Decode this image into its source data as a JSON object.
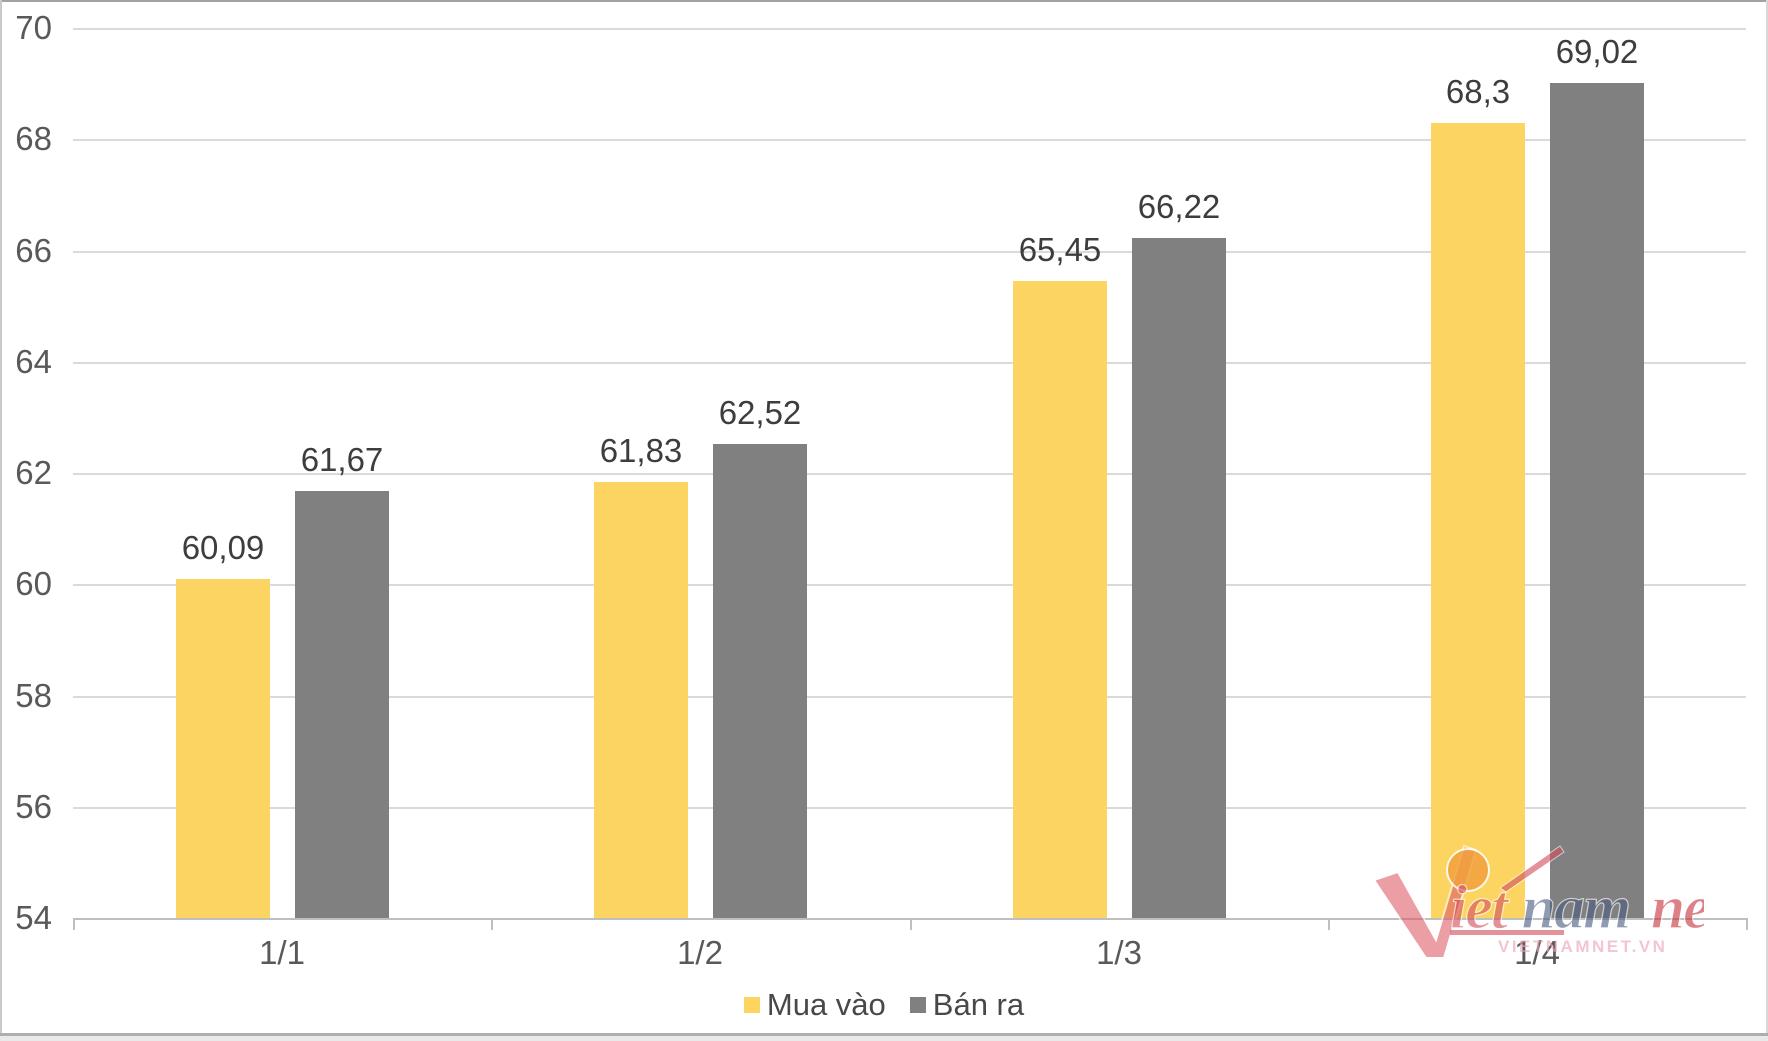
{
  "chart_data": {
    "type": "bar",
    "title": "",
    "xlabel": "",
    "ylabel": "",
    "categories": [
      "1/1",
      "1/2",
      "1/3",
      "1/4"
    ],
    "series": [
      {
        "name": "Mua vào",
        "color": "#FCD462",
        "values": [
          60.09,
          61.83,
          65.45,
          68.3
        ],
        "labels": [
          "60,09",
          "61,83",
          "65,45",
          "68,3"
        ]
      },
      {
        "name": "Bán ra",
        "color": "#808080",
        "values": [
          61.67,
          62.52,
          66.22,
          69.02
        ],
        "labels": [
          "61,67",
          "62,52",
          "66,22",
          "69,02"
        ]
      }
    ],
    "ylim": [
      54,
      70
    ],
    "ytick_step": 2,
    "ytick_labels": [
      "70",
      "68",
      "66",
      "64",
      "62",
      "60",
      "58",
      "56",
      "54"
    ],
    "grid": "horizontal",
    "legend_position": "bottom"
  },
  "watermark": {
    "script_iet": "iet",
    "script_nam": "nam",
    "script_net": "net",
    "caps": "VIETNAMNET.VN",
    "check_color": "#dd5964",
    "dot_color": "#f2a13f",
    "iet_color": "#d4505c",
    "nam_color": "#4d5f82",
    "net_color": "#c8353e",
    "caps_color": "#eba3b5"
  }
}
